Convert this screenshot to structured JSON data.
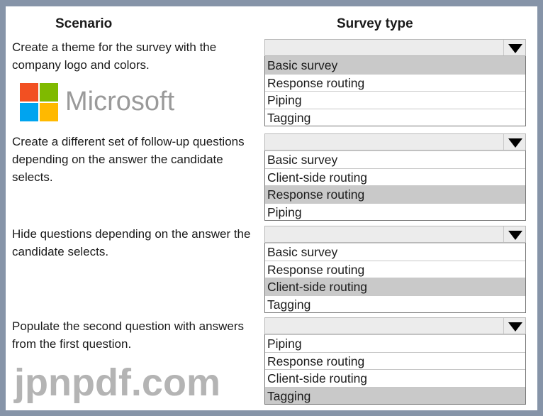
{
  "headers": {
    "scenario": "Scenario",
    "survey_type": "Survey type"
  },
  "rows": [
    {
      "scenario": "Create a theme for the survey with the company logo and colors.",
      "selected": "",
      "options": [
        "Basic survey",
        "Response routing",
        "Piping",
        "Tagging"
      ],
      "highlighted": 0
    },
    {
      "scenario": "Create a different set of follow-up questions depending on the answer the candidate selects.",
      "selected": "",
      "options": [
        "Basic survey",
        "Client-side routing",
        "Response routing",
        "Piping"
      ],
      "highlighted": 2
    },
    {
      "scenario": "Hide questions depending on the answer the candidate selects.",
      "selected": "",
      "options": [
        "Basic survey",
        "Response routing",
        "Client-side routing",
        "Tagging"
      ],
      "highlighted": 2
    },
    {
      "scenario": "Populate the second question with answers from the first question.",
      "selected": "",
      "options": [
        "Piping",
        "Response routing",
        "Client-side routing",
        "Tagging"
      ],
      "highlighted": 3
    }
  ],
  "watermark": {
    "text": "jpnpdf.com",
    "logo_text": "Microsoft",
    "logo_colors": [
      "#f25022",
      "#7fba00",
      "#00a4ef",
      "#ffb900"
    ]
  },
  "colors": {
    "border": "#8694a8",
    "highlight": "#c9c9c9",
    "header_bg": "#ececec"
  }
}
